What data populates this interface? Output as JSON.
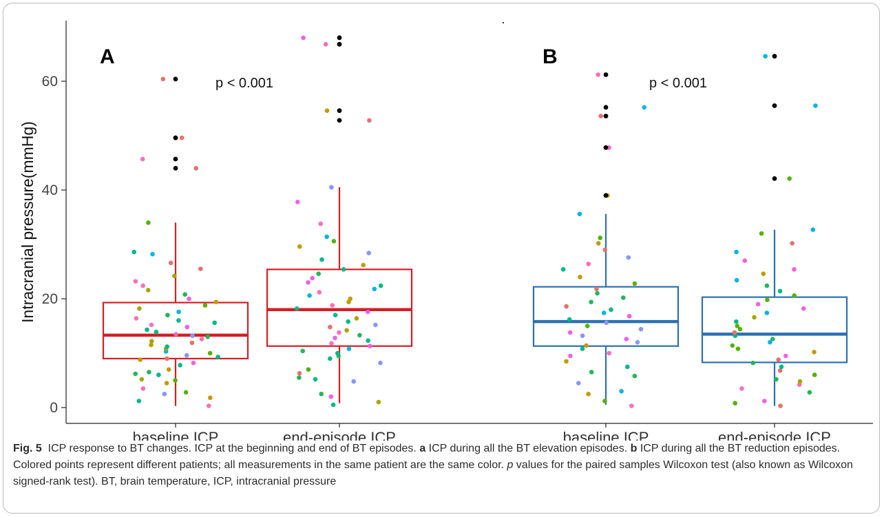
{
  "chart_data": {
    "type": "box",
    "ylabel": "Intracranial pressure(mmHg)",
    "ylim": [
      0,
      70
    ],
    "yticks": [
      0,
      20,
      40,
      60
    ],
    "categories": [
      "baseline ICP",
      "end-episode ICP",
      "baseline ICP",
      "end-episode ICP"
    ],
    "panels": [
      {
        "label": "A",
        "annotation": "p < 0.001",
        "color": "#d21f26",
        "boxes": [
          {
            "category": "baseline ICP",
            "q1": 9.0,
            "median": 13.3,
            "q3": 19.3,
            "whisker_low": 0.3,
            "whisker_high": 34.0,
            "outliers": [
              44.0,
              45.7,
              49.6,
              60.4
            ],
            "points": [
              0.3,
              1.2,
              1.8,
              2.5,
              2.8,
              3.5,
              4.5,
              5.0,
              5.2,
              6.0,
              6.2,
              6.5,
              7.0,
              7.8,
              8.2,
              8.8,
              9.0,
              9.3,
              9.6,
              10.0,
              10.3,
              10.8,
              11.2,
              11.5,
              11.9,
              12.2,
              12.6,
              13.0,
              13.2,
              13.5,
              13.9,
              14.3,
              14.8,
              15.2,
              15.6,
              16.0,
              16.4,
              17.0,
              17.6,
              18.2,
              18.8,
              19.4,
              20.0,
              20.8,
              21.6,
              22.4,
              23.2,
              24.2,
              25.5,
              26.6,
              28.2,
              28.6,
              34.0,
              44.0,
              45.7,
              49.6,
              60.4
            ]
          },
          {
            "category": "end-episode ICP",
            "q1": 11.3,
            "median": 18.0,
            "q3": 25.4,
            "whisker_low": 0.8,
            "whisker_high": 40.5,
            "outliers": [
              52.8,
              54.6,
              66.8,
              68.0
            ],
            "points": [
              0.5,
              1.0,
              2.0,
              2.5,
              4.8,
              5.2,
              5.5,
              6.3,
              7.0,
              8.2,
              9.0,
              9.5,
              10.0,
              10.4,
              10.8,
              11.3,
              11.8,
              12.3,
              12.8,
              13.3,
              13.8,
              14.2,
              14.8,
              15.2,
              15.8,
              16.4,
              17.0,
              17.6,
              18.2,
              18.8,
              19.4,
              20.0,
              20.6,
              21.2,
              21.8,
              22.4,
              23.0,
              23.8,
              24.6,
              25.4,
              26.2,
              27.2,
              28.4,
              29.6,
              30.6,
              31.4,
              33.8,
              37.8,
              40.5,
              52.8,
              54.6,
              66.8,
              68.0
            ]
          }
        ]
      },
      {
        "label": "B",
        "annotation": "p < 0.001",
        "color": "#2c70b0",
        "boxes": [
          {
            "category": "baseline ICP",
            "q1": 11.3,
            "median": 15.8,
            "q3": 22.2,
            "whisker_low": 0.5,
            "whisker_high": 35.6,
            "outliers": [
              39.0,
              47.8,
              53.6,
              55.2,
              61.2
            ],
            "points": [
              0.3,
              1.2,
              2.5,
              3.0,
              4.5,
              5.8,
              6.5,
              7.5,
              8.5,
              9.5,
              10.0,
              10.8,
              11.4,
              12.0,
              12.6,
              13.2,
              13.8,
              14.4,
              15.0,
              15.6,
              16.2,
              16.8,
              17.4,
              18.0,
              18.6,
              19.4,
              20.2,
              21.0,
              21.8,
              22.8,
              24.0,
              25.4,
              26.4,
              27.6,
              29.0,
              30.2,
              31.2,
              35.6,
              39.0,
              47.8,
              53.6,
              55.2,
              61.2
            ]
          },
          {
            "category": "end-episode ICP",
            "q1": 8.3,
            "median": 13.5,
            "q3": 20.3,
            "whisker_low": 0.3,
            "whisker_high": 32.7,
            "outliers": [
              42.1,
              55.5,
              64.6
            ],
            "points": [
              0.3,
              0.8,
              1.2,
              2.8,
              3.5,
              4.2,
              4.8,
              5.2,
              6.0,
              6.8,
              7.5,
              8.2,
              8.8,
              9.5,
              10.2,
              10.8,
              11.4,
              12.0,
              12.6,
              13.2,
              13.8,
              14.4,
              15.0,
              15.8,
              16.6,
              17.4,
              18.2,
              19.0,
              19.8,
              20.6,
              21.4,
              22.4,
              23.4,
              24.6,
              25.4,
              27.0,
              28.6,
              30.2,
              32.0,
              32.7,
              42.1,
              55.5,
              64.6
            ]
          }
        ]
      }
    ]
  },
  "caption": {
    "fig_label": "Fig. 5",
    "text_1": "ICP response to BT changes. ICP at the beginning and end of BT episodes.",
    "a_label": "a",
    "text_2": "ICP during all the BT elevation episodes.",
    "b_label": "b",
    "text_3": "ICP during all the BT reduction episodes. Colored points represent different patients; all measurements in the same patient are the same color.",
    "p_label": "p",
    "text_4": "values for the paired samples Wilcoxon test (also known as Wilcoxon signed-rank test). BT, brain temperature, ICP, intracranial pressure"
  }
}
